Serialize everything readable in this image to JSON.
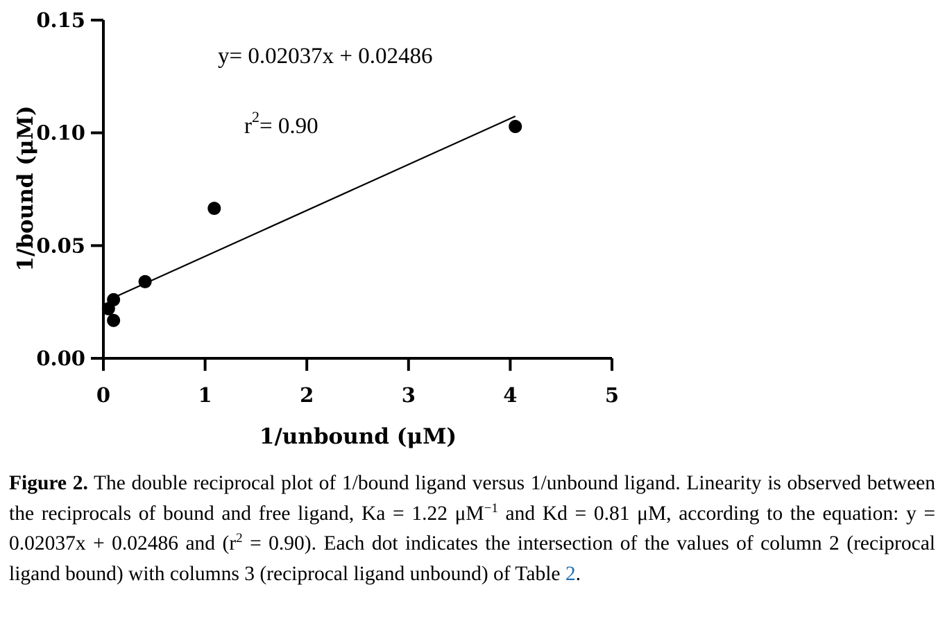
{
  "chart_data": {
    "type": "scatter",
    "title": "",
    "xlabel": "1/unbound (μM)",
    "ylabel": "1/bound (μM)",
    "xlim": [
      0,
      5
    ],
    "ylim": [
      0,
      0.15
    ],
    "x_ticks": [
      "0",
      "1",
      "2",
      "3",
      "4",
      "5"
    ],
    "y_ticks": [
      "0.00",
      "0.05",
      "0.10",
      "0.15"
    ],
    "x_tick_values": [
      0,
      1,
      2,
      3,
      4,
      5
    ],
    "y_tick_values": [
      0,
      0.05,
      0.1,
      0.15
    ],
    "grid": false,
    "series": [
      {
        "points": [
          {
            "x": 0.05,
            "y": 0.022
          },
          {
            "x": 0.1,
            "y": 0.026
          },
          {
            "x": 0.1,
            "y": 0.0168
          },
          {
            "x": 0.41,
            "y": 0.034
          },
          {
            "x": 1.09,
            "y": 0.0665
          },
          {
            "x": 4.05,
            "y": 0.1028
          }
        ],
        "color": "#000000"
      }
    ],
    "fit_line": {
      "slope": 0.02037,
      "intercept": 0.02486,
      "x_range": [
        0.05,
        4.05
      ]
    },
    "annotations": {
      "equation": "y= 0.02037x + 0.02486",
      "r2_prefix": "r",
      "r2_sup": "2",
      "r2_value": "= 0.90"
    }
  },
  "caption": {
    "label": "Figure 2.",
    "part1": " The double reciprocal plot of 1/bound ligand versus 1/unbound ligand. Linearity is observed between the reciprocals of bound and free ligand, Ka = 1.22 μM",
    "sup1": "−1",
    "part2": " and Kd = 0.81 μM, according to the equation: y = 0.02037x + 0.02486 and (r",
    "sup2": "2",
    "part3": " = 0.90). Each dot indicates the intersection of the values of column 2 (reciprocal ligand bound) with columns 3 (reciprocal ligand unbound) of Table ",
    "ref": "2",
    "end": "."
  }
}
